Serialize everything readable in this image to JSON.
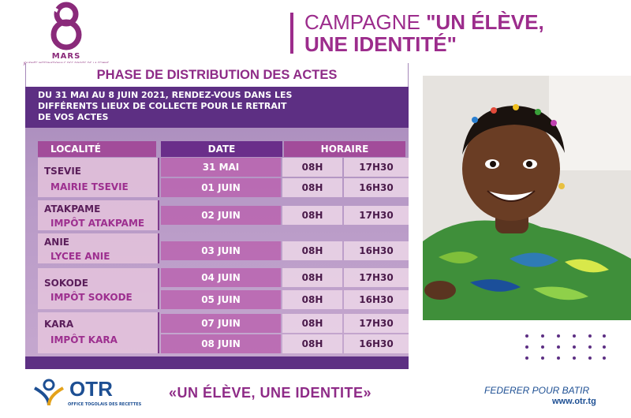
{
  "logo": {
    "mars": "MARS",
    "subtitle": "JOURNÉE INTERNATIONALE DES DROITS DE LA FEMME"
  },
  "campaign": {
    "line1_prefix": "CAMPAGNE ",
    "line1_bold": "\"UN ÉLÈVE,",
    "line2": "UNE IDENTITÉ\""
  },
  "phase_title": "PHASE DE DISTRIBUTION DES ACTES",
  "intro": [
    "DU 31 MAI AU 8 JUIN 2021, RENDEZ-VOUS DANS LES",
    "DIFFÉRENTS LIEUX DE COLLECTE POUR LE RETRAIT",
    "DE VOS ACTES"
  ],
  "table": {
    "headers": {
      "localite": "LOCALITÉ",
      "date": "DATE",
      "horaire": "HORAIRE"
    },
    "rows": [
      {
        "name": "TSEVIE",
        "place": "MAIRIE TSEVIE",
        "slots": [
          {
            "date": "31 MAI",
            "start": "08H",
            "end": "17H30"
          },
          {
            "date": "01 JUIN",
            "start": "08H",
            "end": "16H30"
          }
        ]
      },
      {
        "name": "ATAKPAME",
        "place": "IMPÔT ATAKPAME",
        "slots": [
          {
            "date": "02 JUIN",
            "start": "08H",
            "end": "17H30"
          }
        ]
      },
      {
        "name": "ANIE",
        "place": "LYCEE ANIE",
        "slots": [
          {
            "date": "03 JUIN",
            "start": "08H",
            "end": "16H30"
          }
        ]
      },
      {
        "name": "SOKODE",
        "place": "IMPÔT SOKODE",
        "slots": [
          {
            "date": "04 JUIN",
            "start": "08H",
            "end": "17H30"
          },
          {
            "date": "05 JUIN",
            "start": "08H",
            "end": "16H30"
          }
        ]
      },
      {
        "name": "KARA",
        "place": "IMPÔT KARA",
        "slots": [
          {
            "date": "07 JUIN",
            "start": "08H",
            "end": "17H30"
          },
          {
            "date": "08 JUIN",
            "start": "08H",
            "end": "16H30"
          }
        ]
      }
    ]
  },
  "footer": {
    "otr": "OTR",
    "otr_sub": "OFFICE TOGOLAIS DES RECETTES",
    "slogan": "«UN ÉLÈVE, UNE IDENTITE»",
    "tagline": "FEDERER POUR BATIR",
    "website": "www.otr.tg"
  },
  "colors": {
    "brand_purple": "#9c2c8c",
    "deep_purple": "#5d2f83",
    "otr_blue": "#1d4f93"
  }
}
